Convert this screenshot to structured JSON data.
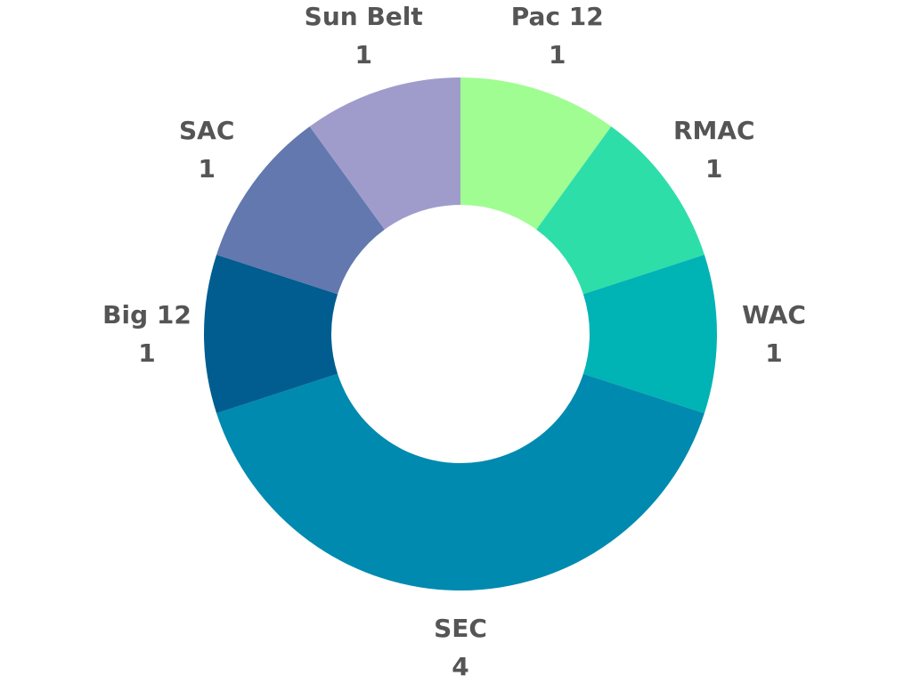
{
  "chart_data": {
    "type": "pie",
    "variant": "donut",
    "title": "",
    "legend": "none",
    "slices": [
      {
        "label": "Pac 12",
        "value": 1,
        "color": "#a0fd92"
      },
      {
        "label": "RMAC",
        "value": 1,
        "color": "#2ddea9"
      },
      {
        "label": "WAC",
        "value": 1,
        "color": "#00b3b5"
      },
      {
        "label": "SEC",
        "value": 4,
        "color": "#008aaf"
      },
      {
        "label": "Big 12",
        "value": 1,
        "color": "#015d8f"
      },
      {
        "label": "SAC",
        "value": 1,
        "color": "#6278ae"
      },
      {
        "label": "Sun Belt",
        "value": 1,
        "color": "#9f9ccc"
      }
    ]
  }
}
